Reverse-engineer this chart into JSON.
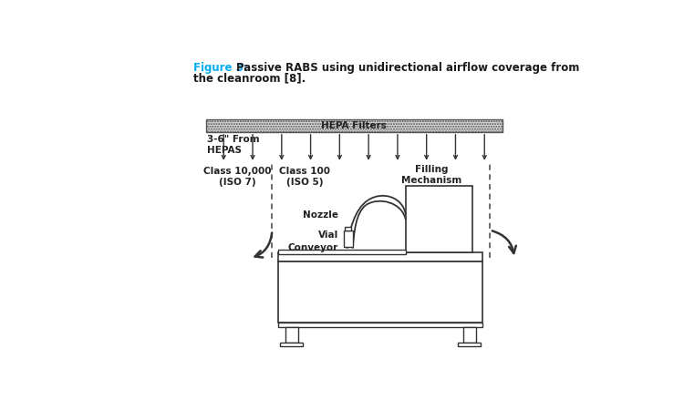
{
  "title_figure": "Figure 3:",
  "title_rest": " Passive RABS using unidirectional airflow coverage from\nthe cleanroom [8].",
  "title_color": "#00AEEF",
  "bg_color": "#ffffff",
  "hepa_label": "HEPA Filters",
  "label_class10000": "Class 10,000\n(ISO 7)",
  "label_class100": "Class 100\n(ISO 5)",
  "label_filling": "Filling\nMechanism",
  "label_nozzle": "Nozzle",
  "label_vial": "Vial",
  "label_conveyor": "Conveyor",
  "label_36": "3-6\" From\nHEPAS"
}
